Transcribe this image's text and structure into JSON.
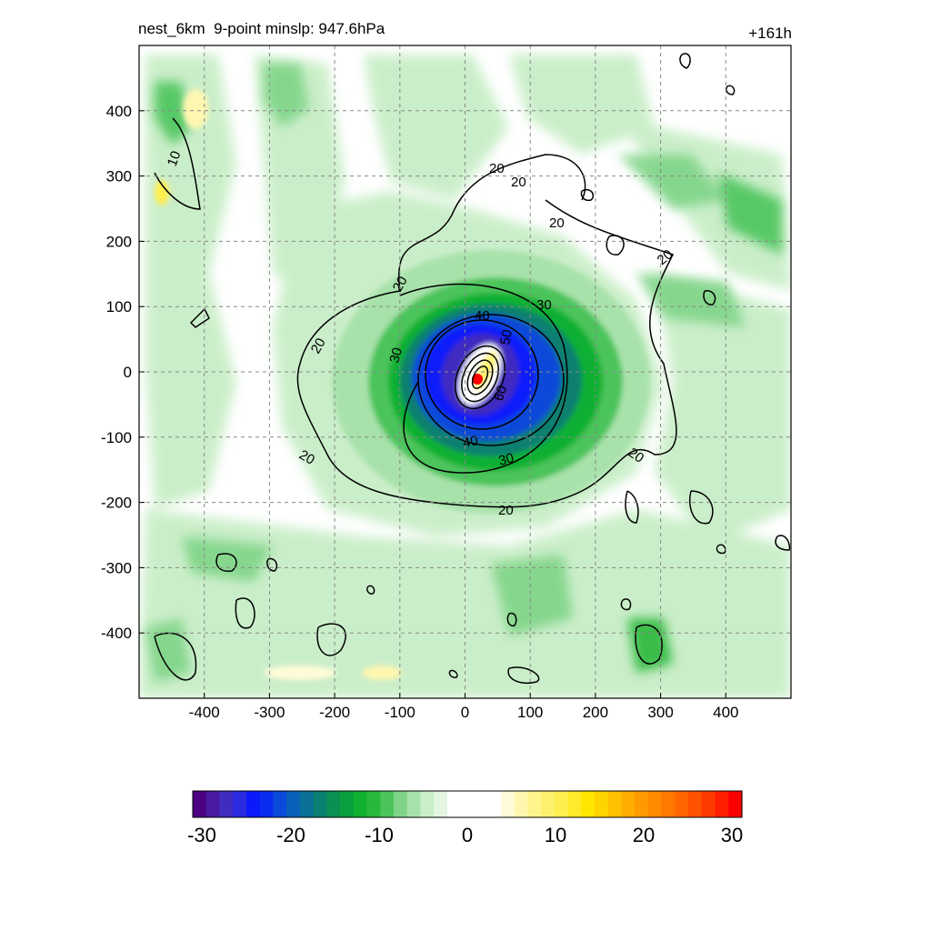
{
  "header": {
    "title": "nest_6km  9-point minslp: 947.6hPa",
    "time_label": "+161h"
  },
  "map": {
    "x_ticks": [
      "-400",
      "-300",
      "-200",
      "-100",
      "0",
      "100",
      "200",
      "300",
      "400"
    ],
    "y_ticks": [
      "400",
      "300",
      "200",
      "100",
      "0",
      "-100",
      "-200",
      "-300",
      "-400"
    ],
    "x_range": [
      -500,
      500
    ],
    "y_range": [
      -500,
      500
    ],
    "grid": true,
    "storm_center_marker_color": "#ff0000",
    "contour_labels": [
      "10",
      "20",
      "20",
      "20",
      "20",
      "20",
      "20",
      "20",
      "20",
      "30",
      "30",
      "30",
      "40",
      "40",
      "50",
      "60"
    ]
  },
  "colorbar": {
    "tick_labels": [
      "-30",
      "-20",
      "-10",
      "0",
      "10",
      "20",
      "30"
    ],
    "range": [
      -30,
      30
    ],
    "colors": [
      "#4b0082",
      "#4a1aa0",
      "#3f2cc0",
      "#2a2ae0",
      "#0a1afa",
      "#0a2cf0",
      "#0a4ad8",
      "#0a60b8",
      "#0a7098",
      "#0a8070",
      "#0a9050",
      "#0aa040",
      "#10b030",
      "#2ab83a",
      "#4cc45c",
      "#7fd487",
      "#a8e2ab",
      "#c9eec8",
      "#e2f6e0",
      "#ffffff",
      "#ffffff",
      "#ffffff",
      "#ffffff",
      "#fffbd8",
      "#fff7b0",
      "#fff48c",
      "#fff170",
      "#ffee50",
      "#ffea2c",
      "#ffe600",
      "#ffd400",
      "#ffc000",
      "#ffad00",
      "#ff9a00",
      "#ff8a00",
      "#ff7800",
      "#ff6600",
      "#ff5200",
      "#ff3a00",
      "#ff1e00",
      "#ff0000"
    ]
  }
}
